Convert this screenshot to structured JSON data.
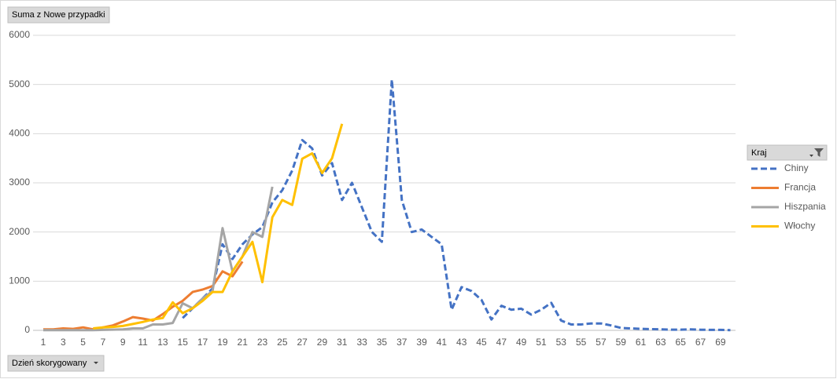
{
  "chart_data": {
    "type": "line",
    "value_field": "Suma z Nowe przypadki",
    "axis_field": "Dzień skorygowany",
    "legend_title": "Kraj",
    "legend": "right",
    "grid": true,
    "categories": [
      1,
      null,
      3,
      null,
      5,
      null,
      7,
      null,
      9,
      null,
      11,
      null,
      13,
      null,
      15,
      null,
      17,
      null,
      19,
      null,
      21,
      null,
      23,
      null,
      25,
      null,
      27,
      null,
      29,
      null,
      31,
      null,
      33,
      null,
      35,
      null,
      37,
      null,
      39,
      null,
      41,
      null,
      43,
      null,
      45,
      null,
      47,
      null,
      49,
      null,
      51,
      null,
      53,
      null,
      55,
      null,
      57,
      null,
      59,
      null,
      61,
      null,
      63,
      null,
      65,
      null,
      67,
      null,
      69,
      null
    ],
    "ylim": [
      0,
      6000
    ],
    "yticks": [
      0,
      1000,
      2000,
      3000,
      4000,
      5000,
      6000
    ],
    "series": [
      {
        "name": "Chiny",
        "color": "#4472c4",
        "style": "dashed",
        "values": [
          null,
          null,
          null,
          null,
          null,
          null,
          null,
          null,
          null,
          null,
          null,
          null,
          null,
          null,
          250,
          450,
          650,
          850,
          1750,
          1450,
          1750,
          1950,
          2100,
          2600,
          2850,
          3250,
          3870,
          3700,
          3150,
          3400,
          2650,
          3000,
          2500,
          2000,
          1800,
          5100,
          2650,
          2000,
          2050,
          1900,
          1750,
          420,
          880,
          800,
          620,
          220,
          500,
          420,
          440,
          320,
          420,
          560,
          200,
          120,
          120,
          140,
          140,
          100,
          50,
          40,
          30,
          25,
          20,
          15,
          15,
          20,
          12,
          10,
          10,
          5
        ]
      },
      {
        "name": "Francja",
        "color": "#ed7d31",
        "style": "solid",
        "values": [
          20,
          20,
          40,
          30,
          60,
          20,
          60,
          100,
          180,
          270,
          240,
          200,
          330,
          480,
          600,
          780,
          830,
          900,
          1200,
          1100,
          1400,
          null,
          null,
          null,
          null,
          null,
          null,
          null,
          null,
          null,
          null,
          null,
          null,
          null,
          null,
          null,
          null,
          null,
          null,
          null,
          null,
          null,
          null,
          null,
          null,
          null,
          null,
          null,
          null,
          null,
          null,
          null,
          null,
          null,
          null,
          null,
          null,
          null,
          null,
          null,
          null,
          null,
          null,
          null,
          null,
          null,
          null,
          null,
          null,
          null
        ]
      },
      {
        "name": "Hiszpania",
        "color": "#a5a5a5",
        "style": "solid",
        "values": [
          5,
          5,
          5,
          5,
          5,
          5,
          10,
          15,
          20,
          40,
          40,
          120,
          120,
          150,
          550,
          450,
          650,
          800,
          2080,
          1200,
          1500,
          2000,
          1900,
          2920,
          null,
          null,
          null,
          null,
          null,
          null,
          null,
          null,
          null,
          null,
          null,
          null,
          null,
          null,
          null,
          null,
          null,
          null,
          null,
          null,
          null,
          null,
          null,
          null,
          null,
          null,
          null,
          null,
          null,
          null,
          null,
          null,
          null,
          null,
          null,
          null,
          null,
          null,
          null,
          null,
          null,
          null,
          null,
          null,
          null,
          null
        ]
      },
      {
        "name": "Włochy",
        "color": "#ffc000",
        "style": "solid",
        "values": [
          null,
          null,
          null,
          null,
          null,
          40,
          60,
          70,
          90,
          130,
          170,
          220,
          250,
          570,
          350,
          450,
          600,
          780,
          780,
          1200,
          1500,
          1800,
          980,
          2300,
          2650,
          2550,
          3490,
          3600,
          3200,
          3500,
          4200,
          null,
          null,
          null,
          null,
          null,
          null,
          null,
          null,
          null,
          null,
          null,
          null,
          null,
          null,
          null,
          null,
          null,
          null,
          null,
          null,
          null,
          null,
          null,
          null,
          null,
          null,
          null,
          null,
          null,
          null,
          null,
          null,
          null,
          null,
          null,
          null,
          null,
          null,
          null
        ]
      }
    ]
  }
}
